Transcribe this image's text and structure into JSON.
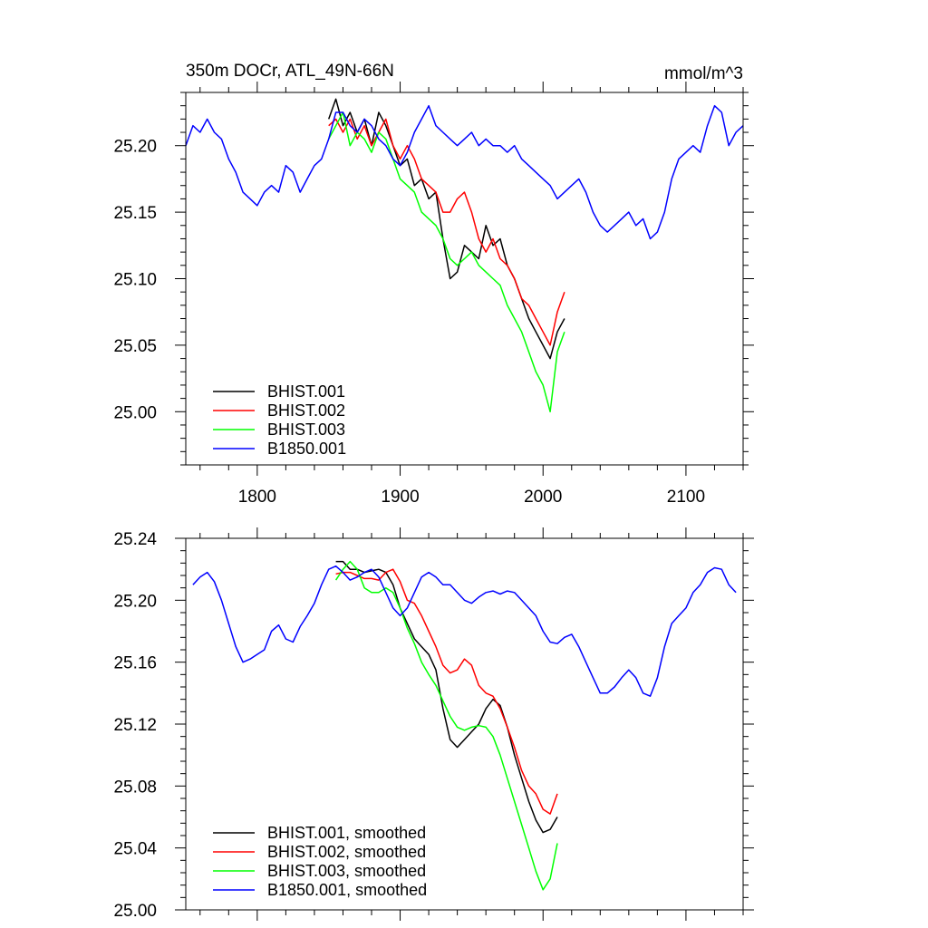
{
  "chart_data": [
    {
      "type": "line",
      "title": "350m DOCr, ATL_49N-66N",
      "units_label": "mmol/m^3",
      "xlim": [
        1750,
        2140
      ],
      "ylim": [
        24.96,
        25.24
      ],
      "x_ticks": [
        1800,
        1900,
        2000,
        2100
      ],
      "x_tick_labels": [
        "1800",
        "1900",
        "2000",
        "2100"
      ],
      "y_ticks": [
        25.0,
        25.05,
        25.1,
        25.15,
        25.2
      ],
      "y_tick_labels": [
        "25.00",
        "25.05",
        "25.10",
        "25.15",
        "25.20"
      ],
      "legend_placement": "bottom-left",
      "series": [
        {
          "name": "BHIST.001",
          "color": "#000000",
          "x": [
            1850,
            1855,
            1860,
            1865,
            1870,
            1875,
            1880,
            1885,
            1890,
            1895,
            1900,
            1905,
            1910,
            1915,
            1920,
            1925,
            1930,
            1935,
            1940,
            1945,
            1950,
            1955,
            1960,
            1965,
            1970,
            1975,
            1980,
            1985,
            1990,
            1995,
            2000,
            2005,
            2010,
            2015
          ],
          "y": [
            25.22,
            25.235,
            25.215,
            25.225,
            25.21,
            25.22,
            25.2,
            25.225,
            25.215,
            25.2,
            25.185,
            25.19,
            25.17,
            25.175,
            25.16,
            25.165,
            25.13,
            25.1,
            25.105,
            25.125,
            25.12,
            25.115,
            25.14,
            25.125,
            25.13,
            25.11,
            25.1,
            25.085,
            25.07,
            25.06,
            25.05,
            25.04,
            25.06,
            25.07
          ]
        },
        {
          "name": "BHIST.002",
          "color": "#ff0000",
          "x": [
            1850,
            1855,
            1860,
            1865,
            1870,
            1875,
            1880,
            1885,
            1890,
            1895,
            1900,
            1905,
            1910,
            1915,
            1920,
            1925,
            1930,
            1935,
            1940,
            1945,
            1950,
            1955,
            1960,
            1965,
            1970,
            1975,
            1980,
            1985,
            1990,
            1995,
            2000,
            2005,
            2010,
            2015
          ],
          "y": [
            25.215,
            25.22,
            25.21,
            25.22,
            25.205,
            25.215,
            25.2,
            25.21,
            25.22,
            25.2,
            25.19,
            25.2,
            25.19,
            25.175,
            25.17,
            25.165,
            25.15,
            25.15,
            25.16,
            25.165,
            25.15,
            25.13,
            25.12,
            25.13,
            25.115,
            25.11,
            25.1,
            25.085,
            25.08,
            25.07,
            25.06,
            25.05,
            25.075,
            25.09
          ]
        },
        {
          "name": "BHIST.003",
          "color": "#00ff00",
          "x": [
            1850,
            1855,
            1860,
            1865,
            1870,
            1875,
            1880,
            1885,
            1890,
            1895,
            1900,
            1905,
            1910,
            1915,
            1920,
            1925,
            1930,
            1935,
            1940,
            1945,
            1950,
            1955,
            1960,
            1965,
            1970,
            1975,
            1980,
            1985,
            1990,
            1995,
            2000,
            2005,
            2010,
            2015
          ],
          "y": [
            25.205,
            25.215,
            25.225,
            25.2,
            25.21,
            25.205,
            25.195,
            25.21,
            25.205,
            25.19,
            25.175,
            25.17,
            25.165,
            25.15,
            25.145,
            25.14,
            25.13,
            25.115,
            25.11,
            25.115,
            25.12,
            25.11,
            25.105,
            25.1,
            25.095,
            25.08,
            25.07,
            25.06,
            25.045,
            25.03,
            25.02,
            25.0,
            25.045,
            25.06
          ]
        },
        {
          "name": "B1850.001",
          "color": "#0000ff",
          "x": [
            1750,
            1755,
            1760,
            1765,
            1770,
            1775,
            1780,
            1785,
            1790,
            1795,
            1800,
            1805,
            1810,
            1815,
            1820,
            1825,
            1830,
            1835,
            1840,
            1845,
            1850,
            1855,
            1860,
            1865,
            1870,
            1875,
            1880,
            1885,
            1890,
            1895,
            1900,
            1905,
            1910,
            1915,
            1920,
            1925,
            1930,
            1935,
            1940,
            1945,
            1950,
            1955,
            1960,
            1965,
            1970,
            1975,
            1980,
            1985,
            1990,
            1995,
            2000,
            2005,
            2010,
            2015,
            2020,
            2025,
            2030,
            2035,
            2040,
            2045,
            2050,
            2055,
            2060,
            2065,
            2070,
            2075,
            2080,
            2085,
            2090,
            2095,
            2100,
            2105,
            2110,
            2115,
            2120,
            2125,
            2130,
            2135,
            2140
          ],
          "y": [
            25.2,
            25.215,
            25.21,
            25.22,
            25.21,
            25.205,
            25.19,
            25.18,
            25.165,
            25.16,
            25.155,
            25.165,
            25.17,
            25.165,
            25.185,
            25.18,
            25.165,
            25.175,
            25.185,
            25.19,
            25.205,
            25.225,
            25.225,
            25.215,
            25.21,
            25.22,
            25.215,
            25.205,
            25.2,
            25.19,
            25.185,
            25.195,
            25.21,
            25.22,
            25.23,
            25.215,
            25.21,
            25.205,
            25.2,
            25.205,
            25.21,
            25.2,
            25.205,
            25.2,
            25.2,
            25.195,
            25.2,
            25.19,
            25.185,
            25.18,
            25.175,
            25.17,
            25.16,
            25.165,
            25.17,
            25.175,
            25.165,
            25.15,
            25.14,
            25.135,
            25.14,
            25.145,
            25.15,
            25.14,
            25.145,
            25.13,
            25.135,
            25.15,
            25.175,
            25.19,
            25.195,
            25.2,
            25.195,
            25.215,
            25.23,
            25.225,
            25.2,
            25.21,
            25.215
          ]
        }
      ]
    },
    {
      "type": "line",
      "xlim": [
        1750,
        2140
      ],
      "ylim": [
        25.0,
        25.24
      ],
      "x_ticks": [
        1800,
        1900,
        2000,
        2100
      ],
      "y_ticks": [
        25.0,
        25.04,
        25.08,
        25.12,
        25.16,
        25.2,
        25.24
      ],
      "y_tick_labels": [
        "25.00",
        "25.04",
        "25.08",
        "25.12",
        "25.16",
        "25.20",
        "25.24"
      ],
      "legend_placement": "bottom-left",
      "series": [
        {
          "name": "BHIST.001, smoothed",
          "color": "#000000",
          "x": [
            1855,
            1860,
            1865,
            1870,
            1875,
            1880,
            1885,
            1890,
            1895,
            1900,
            1905,
            1910,
            1915,
            1920,
            1925,
            1930,
            1935,
            1940,
            1945,
            1950,
            1955,
            1960,
            1965,
            1970,
            1975,
            1980,
            1985,
            1990,
            1995,
            2000,
            2005,
            2010
          ],
          "y": [
            25.225,
            25.225,
            25.22,
            25.22,
            25.218,
            25.219,
            25.22,
            25.218,
            25.21,
            25.195,
            25.185,
            25.175,
            25.17,
            25.165,
            25.155,
            25.13,
            25.11,
            25.105,
            25.11,
            25.115,
            25.12,
            25.13,
            25.136,
            25.132,
            25.118,
            25.1,
            25.085,
            25.07,
            25.058,
            25.05,
            25.052,
            25.06
          ]
        },
        {
          "name": "BHIST.002, smoothed",
          "color": "#ff0000",
          "x": [
            1855,
            1860,
            1865,
            1870,
            1875,
            1880,
            1885,
            1890,
            1895,
            1900,
            1905,
            1910,
            1915,
            1920,
            1925,
            1930,
            1935,
            1940,
            1945,
            1950,
            1955,
            1960,
            1965,
            1970,
            1975,
            1980,
            1985,
            1990,
            1995,
            2000,
            2005,
            2010
          ],
          "y": [
            25.217,
            25.218,
            25.218,
            25.216,
            25.214,
            25.214,
            25.213,
            25.218,
            25.22,
            25.212,
            25.2,
            25.198,
            25.19,
            25.18,
            25.17,
            25.158,
            25.153,
            25.155,
            25.162,
            25.158,
            25.145,
            25.14,
            25.138,
            25.13,
            25.118,
            25.105,
            25.09,
            25.08,
            25.075,
            25.065,
            25.062,
            25.075
          ]
        },
        {
          "name": "BHIST.003, smoothed",
          "color": "#00ff00",
          "x": [
            1855,
            1860,
            1865,
            1870,
            1875,
            1880,
            1885,
            1890,
            1895,
            1900,
            1905,
            1910,
            1915,
            1920,
            1925,
            1930,
            1935,
            1940,
            1945,
            1950,
            1955,
            1960,
            1965,
            1970,
            1975,
            1980,
            1985,
            1990,
            1995,
            2000,
            2005,
            2010
          ],
          "y": [
            25.213,
            25.22,
            25.225,
            25.22,
            25.208,
            25.205,
            25.205,
            25.208,
            25.205,
            25.195,
            25.182,
            25.172,
            25.16,
            25.152,
            25.145,
            25.135,
            25.125,
            25.118,
            25.116,
            25.118,
            25.119,
            25.118,
            25.112,
            25.1,
            25.085,
            25.07,
            25.055,
            25.04,
            25.025,
            25.013,
            25.02,
            25.043
          ]
        },
        {
          "name": "B1850.001, smoothed",
          "color": "#0000ff",
          "x": [
            1755,
            1760,
            1765,
            1770,
            1775,
            1780,
            1785,
            1790,
            1795,
            1800,
            1805,
            1810,
            1815,
            1820,
            1825,
            1830,
            1835,
            1840,
            1845,
            1850,
            1855,
            1860,
            1865,
            1870,
            1875,
            1880,
            1885,
            1890,
            1895,
            1900,
            1905,
            1910,
            1915,
            1920,
            1925,
            1930,
            1935,
            1940,
            1945,
            1950,
            1955,
            1960,
            1965,
            1970,
            1975,
            1980,
            1985,
            1990,
            1995,
            2000,
            2005,
            2010,
            2015,
            2020,
            2025,
            2030,
            2035,
            2040,
            2045,
            2050,
            2055,
            2060,
            2065,
            2070,
            2075,
            2080,
            2085,
            2090,
            2095,
            2100,
            2105,
            2110,
            2115,
            2120,
            2125,
            2130,
            2135
          ],
          "y": [
            25.21,
            25.215,
            25.218,
            25.212,
            25.2,
            25.185,
            25.17,
            25.16,
            25.162,
            25.165,
            25.168,
            25.18,
            25.184,
            25.175,
            25.173,
            25.183,
            25.19,
            25.198,
            25.21,
            25.22,
            25.222,
            25.218,
            25.213,
            25.215,
            25.218,
            25.22,
            25.215,
            25.205,
            25.195,
            25.19,
            25.195,
            25.205,
            25.215,
            25.218,
            25.215,
            25.21,
            25.21,
            25.205,
            25.2,
            25.198,
            25.202,
            25.205,
            25.206,
            25.204,
            25.206,
            25.205,
            25.2,
            25.195,
            25.19,
            25.18,
            25.173,
            25.172,
            25.176,
            25.178,
            25.17,
            25.16,
            25.15,
            25.14,
            25.14,
            25.144,
            25.15,
            25.155,
            25.15,
            25.14,
            25.138,
            25.15,
            25.17,
            25.185,
            25.19,
            25.195,
            25.205,
            25.21,
            25.218,
            25.221,
            25.22,
            25.21,
            25.205
          ]
        }
      ]
    }
  ]
}
